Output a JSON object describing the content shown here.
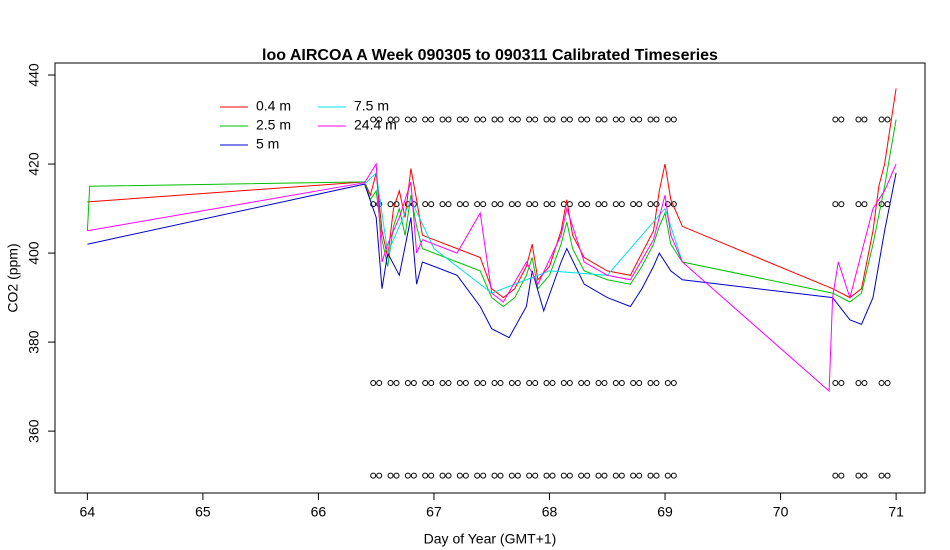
{
  "chart_data": {
    "type": "line",
    "title": "loo AIRCOA A  Week 090305 to 090311  Calibrated Timeseries",
    "x_label": "Day of Year (GMT+1)",
    "y_label": "CO2 (ppm)",
    "xlim": [
      63.72,
      71.25
    ],
    "ylim": [
      346.1,
      442.7
    ],
    "xticks": [
      64,
      65,
      66,
      67,
      68,
      69,
      70,
      71
    ],
    "yticks": [
      360,
      380,
      400,
      420,
      440
    ],
    "series": [
      {
        "name": "0.4 m",
        "color": "#ff0000",
        "x": [
          64,
          66.4,
          66.45,
          66.5,
          66.55,
          66.6,
          66.65,
          66.7,
          66.75,
          66.8,
          66.85,
          66.9,
          67,
          67.2,
          67.4,
          67.5,
          67.6,
          67.7,
          67.8,
          67.85,
          67.9,
          68,
          68.1,
          68.15,
          68.2,
          68.3,
          68.5,
          68.7,
          68.8,
          68.9,
          68.95,
          69,
          69.05,
          69.15,
          70.45,
          70.6,
          70.7,
          70.8,
          70.85,
          70.9,
          71
        ],
        "values": [
          411.5,
          416,
          413,
          418,
          405,
          399,
          410,
          414,
          408,
          419,
          412,
          404,
          403,
          401,
          399,
          392,
          390,
          392,
          397,
          402,
          394,
          397,
          405,
          412,
          404,
          399,
          396,
          395,
          400,
          405,
          414,
          420,
          412,
          406,
          392,
          390,
          392,
          405,
          415,
          420,
          437
        ]
      },
      {
        "name": "2.5 m",
        "color": "#00c000",
        "x": [
          64,
          64.02,
          66.4,
          66.45,
          66.5,
          66.55,
          66.6,
          66.65,
          66.7,
          66.75,
          66.8,
          66.85,
          66.9,
          67,
          67.2,
          67.4,
          67.5,
          67.6,
          67.7,
          67.8,
          67.85,
          67.9,
          68,
          68.1,
          68.15,
          68.2,
          68.3,
          68.5,
          68.7,
          68.8,
          68.9,
          68.95,
          69,
          69.05,
          69.15,
          70.45,
          70.6,
          70.7,
          70.8,
          70.9,
          71
        ],
        "values": [
          405,
          415,
          416,
          412,
          414,
          403,
          397,
          406,
          410,
          404,
          413,
          406,
          401,
          400,
          398,
          396,
          390,
          388,
          390,
          395,
          399,
          392,
          395,
          402,
          407,
          401,
          396,
          394,
          393,
          397,
          402,
          406,
          409,
          402,
          398,
          391,
          389,
          391,
          402,
          415,
          430
        ]
      },
      {
        "name": "5 m",
        "color": "#0000cc",
        "x": [
          64,
          66.4,
          66.5,
          66.55,
          66.6,
          66.7,
          66.8,
          66.85,
          66.9,
          67,
          67.2,
          67.4,
          67.5,
          67.65,
          67.8,
          67.85,
          67.95,
          68.1,
          68.15,
          68.3,
          68.5,
          68.7,
          68.8,
          68.9,
          68.95,
          69.05,
          69.15,
          70.45,
          70.6,
          70.7,
          70.8,
          70.9,
          71
        ],
        "values": [
          402,
          415.5,
          408,
          392,
          400,
          395,
          408,
          393,
          398,
          397,
          395,
          388,
          383,
          381,
          388,
          396,
          387,
          398,
          401,
          393,
          390,
          388,
          392,
          397,
          400,
          396,
          394,
          390,
          385,
          384,
          390,
          405,
          418
        ]
      },
      {
        "name": "7.5 m",
        "color": "#00e0e0",
        "x": [
          66.4,
          66.5,
          66.6,
          66.8,
          67,
          67.5,
          68,
          68.5,
          69,
          69.15
        ],
        "values": [
          415.5,
          418,
          400,
          412,
          401,
          391,
          396,
          395,
          410,
          398
        ]
      },
      {
        "name": "24.4 m",
        "color": "#ff00ff",
        "x": [
          64,
          66.4,
          66.5,
          66.55,
          66.6,
          66.7,
          66.8,
          66.85,
          66.9,
          67,
          67.2,
          67.4,
          67.5,
          67.6,
          67.8,
          67.9,
          68.1,
          68.15,
          68.3,
          68.5,
          68.7,
          68.9,
          69,
          69.05,
          69.15,
          70.42,
          70.45,
          70.5,
          70.6,
          70.8,
          70.9,
          71
        ],
        "values": [
          405,
          415.8,
          420,
          398,
          402,
          408,
          416,
          400,
          403,
          402,
          400,
          409,
          391,
          389,
          398,
          393,
          404,
          410,
          398,
          395,
          394,
          403,
          413,
          404,
          398,
          369,
          390,
          398,
          390,
          410,
          414,
          420
        ]
      }
    ],
    "markers": [
      {
        "x": [
          66.5,
          66.65,
          66.8,
          66.95,
          67.1,
          67.25,
          67.4,
          67.55,
          67.7,
          67.85,
          68.0,
          68.15,
          68.3,
          68.45,
          68.6,
          68.75,
          68.9,
          69.05,
          70.5,
          70.7,
          70.9
        ],
        "values": [
          430,
          430,
          430,
          430,
          430,
          430,
          430,
          430,
          430,
          430,
          430,
          430,
          430,
          430,
          430,
          430,
          430,
          430,
          430,
          430,
          430
        ]
      },
      {
        "x": [
          66.5,
          66.65,
          66.8,
          66.95,
          67.1,
          67.25,
          67.4,
          67.55,
          67.7,
          67.85,
          68.0,
          68.15,
          68.3,
          68.45,
          68.6,
          68.75,
          68.9,
          69.05,
          70.5,
          70.7,
          70.9
        ],
        "values": [
          411,
          411,
          411,
          411,
          411,
          411,
          411,
          411,
          411,
          411,
          411,
          411,
          411,
          411,
          411,
          411,
          411,
          411,
          411,
          411,
          411
        ]
      },
      {
        "x": [
          66.5,
          66.65,
          66.8,
          66.95,
          67.1,
          67.25,
          67.4,
          67.55,
          67.7,
          67.85,
          68.0,
          68.15,
          68.3,
          68.45,
          68.6,
          68.75,
          68.9,
          69.05,
          70.5,
          70.7,
          70.9
        ],
        "values": [
          370.8,
          370.8,
          370.8,
          370.8,
          370.8,
          370.8,
          370.8,
          370.8,
          370.8,
          370.8,
          370.8,
          370.8,
          370.8,
          370.8,
          370.8,
          370.8,
          370.8,
          370.8,
          370.8,
          370.8,
          370.8
        ]
      },
      {
        "x": [
          66.5,
          66.65,
          66.8,
          66.95,
          67.1,
          67.25,
          67.4,
          67.55,
          67.7,
          67.85,
          68.0,
          68.15,
          68.3,
          68.45,
          68.6,
          68.75,
          68.9,
          69.05,
          70.5,
          70.7,
          70.9
        ],
        "values": [
          350,
          350,
          350,
          350,
          350,
          350,
          350,
          350,
          350,
          350,
          350,
          350,
          350,
          350,
          350,
          350,
          350,
          350,
          350,
          350,
          350
        ]
      }
    ]
  }
}
